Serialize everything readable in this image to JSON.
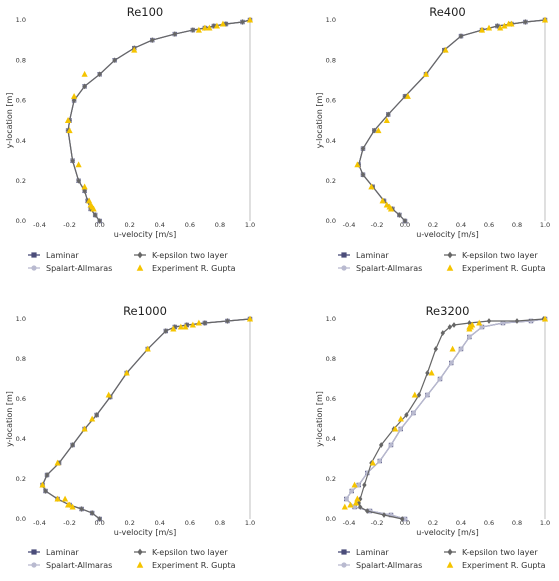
{
  "colors": {
    "laminar": "#4b4d7a",
    "spalart": "#b9bad0",
    "kepsilon": "#666666",
    "experiment": "#f5c400",
    "axis": "#b0b0b0",
    "text": "#333333"
  },
  "chart_data": [
    {
      "type": "line",
      "title": "Re100",
      "xlabel": "u-velocity [m/s]",
      "ylabel": "y-location [m]",
      "xlim": [
        -0.45,
        1.0
      ],
      "ylim": [
        0.0,
        1.0
      ],
      "xticks": [
        "-0.4",
        "-0.2",
        "0.0",
        "0.2",
        "0.4",
        "0.6",
        "0.8",
        "1.0"
      ],
      "yticks": [
        "0.0",
        "0.2",
        "0.4",
        "0.6",
        "0.8",
        "1.0"
      ],
      "legend": [
        "Laminar",
        "Spalart-Allmaras",
        "K-epsilon two layer",
        "Experiment R. Gupta"
      ],
      "series": [
        {
          "name": "Laminar",
          "key": "laminar",
          "marker": "square",
          "x": [
            0.0,
            -0.03,
            -0.06,
            -0.08,
            -0.1,
            -0.14,
            -0.18,
            -0.21,
            -0.2,
            -0.17,
            -0.1,
            0.0,
            0.1,
            0.23,
            0.35,
            0.5,
            0.62,
            0.7,
            0.76,
            0.84,
            0.95,
            1.0
          ],
          "y": [
            0.0,
            0.03,
            0.06,
            0.1,
            0.15,
            0.2,
            0.3,
            0.45,
            0.5,
            0.6,
            0.67,
            0.73,
            0.8,
            0.86,
            0.9,
            0.93,
            0.95,
            0.96,
            0.97,
            0.98,
            0.99,
            1.0
          ]
        },
        {
          "name": "Spalart-Allmaras",
          "key": "spalart",
          "marker": "circle",
          "x": [
            0.0,
            -0.03,
            -0.06,
            -0.08,
            -0.1,
            -0.14,
            -0.18,
            -0.21,
            -0.2,
            -0.17,
            -0.1,
            0.0,
            0.1,
            0.23,
            0.35,
            0.5,
            0.62,
            0.7,
            0.76,
            0.84,
            0.95,
            1.0
          ],
          "y": [
            0.0,
            0.03,
            0.06,
            0.1,
            0.15,
            0.2,
            0.3,
            0.45,
            0.5,
            0.6,
            0.67,
            0.73,
            0.8,
            0.86,
            0.9,
            0.93,
            0.95,
            0.96,
            0.97,
            0.98,
            0.99,
            1.0
          ]
        },
        {
          "name": "K-epsilon two layer",
          "key": "kepsilon",
          "marker": "diamond",
          "x": [
            0.0,
            -0.03,
            -0.06,
            -0.08,
            -0.1,
            -0.14,
            -0.18,
            -0.21,
            -0.2,
            -0.17,
            -0.1,
            0.0,
            0.1,
            0.23,
            0.35,
            0.5,
            0.62,
            0.7,
            0.76,
            0.84,
            0.95,
            1.0
          ],
          "y": [
            0.0,
            0.03,
            0.06,
            0.1,
            0.15,
            0.2,
            0.3,
            0.45,
            0.5,
            0.6,
            0.67,
            0.73,
            0.8,
            0.86,
            0.9,
            0.93,
            0.95,
            0.96,
            0.97,
            0.98,
            0.99,
            1.0
          ]
        },
        {
          "name": "Experiment R. Gupta",
          "key": "experiment",
          "marker": "triangle",
          "scatter": true,
          "x": [
            -0.04,
            -0.05,
            -0.06,
            -0.07,
            -0.1,
            -0.14,
            -0.2,
            -0.21,
            -0.21,
            -0.17,
            -0.1,
            0.23,
            0.66,
            0.7,
            0.73,
            0.78,
            0.82,
            1.0
          ],
          "y": [
            0.06,
            0.07,
            0.08,
            0.1,
            0.17,
            0.28,
            0.45,
            0.5,
            0.5,
            0.62,
            0.73,
            0.85,
            0.95,
            0.96,
            0.96,
            0.97,
            0.98,
            1.0
          ]
        }
      ]
    },
    {
      "type": "line",
      "title": "Re400",
      "xlabel": "u-velocity [m/s]",
      "ylabel": "y-location [m]",
      "xlim": [
        -0.45,
        1.0
      ],
      "ylim": [
        0.0,
        1.0
      ],
      "xticks": [
        "-0.4",
        "-0.2",
        "0.0",
        "0.2",
        "0.4",
        "0.6",
        "0.8",
        "1.0"
      ],
      "yticks": [
        "0.0",
        "0.2",
        "0.4",
        "0.6",
        "0.8",
        "1.0"
      ],
      "legend": [
        "Laminar",
        "Spalart-Allmaras",
        "K-epsilon two layer",
        "Experiment R. Gupta"
      ],
      "series": [
        {
          "name": "Laminar",
          "key": "laminar",
          "marker": "square",
          "x": [
            0.0,
            -0.04,
            -0.09,
            -0.15,
            -0.23,
            -0.3,
            -0.33,
            -0.3,
            -0.22,
            -0.12,
            0.0,
            0.15,
            0.28,
            0.4,
            0.55,
            0.66,
            0.76,
            0.86,
            1.0
          ],
          "y": [
            0.0,
            0.03,
            0.06,
            0.1,
            0.17,
            0.23,
            0.28,
            0.36,
            0.45,
            0.53,
            0.62,
            0.73,
            0.85,
            0.92,
            0.95,
            0.97,
            0.98,
            0.99,
            1.0
          ]
        },
        {
          "name": "Spalart-Allmaras",
          "key": "spalart",
          "marker": "circle",
          "x": [
            0.0,
            -0.04,
            -0.09,
            -0.15,
            -0.23,
            -0.3,
            -0.33,
            -0.3,
            -0.22,
            -0.12,
            0.0,
            0.15,
            0.28,
            0.4,
            0.55,
            0.66,
            0.76,
            0.86,
            1.0
          ],
          "y": [
            0.0,
            0.03,
            0.06,
            0.1,
            0.17,
            0.23,
            0.28,
            0.36,
            0.45,
            0.53,
            0.62,
            0.73,
            0.85,
            0.92,
            0.95,
            0.97,
            0.98,
            0.99,
            1.0
          ]
        },
        {
          "name": "K-epsilon two layer",
          "key": "kepsilon",
          "marker": "diamond",
          "x": [
            0.0,
            -0.04,
            -0.09,
            -0.15,
            -0.23,
            -0.3,
            -0.33,
            -0.3,
            -0.22,
            -0.12,
            0.0,
            0.15,
            0.28,
            0.4,
            0.55,
            0.66,
            0.76,
            0.86,
            1.0
          ],
          "y": [
            0.0,
            0.03,
            0.06,
            0.1,
            0.17,
            0.23,
            0.28,
            0.36,
            0.45,
            0.53,
            0.62,
            0.73,
            0.85,
            0.92,
            0.95,
            0.97,
            0.98,
            0.99,
            1.0
          ]
        },
        {
          "name": "Experiment R. Gupta",
          "key": "experiment",
          "marker": "triangle",
          "scatter": true,
          "x": [
            -0.1,
            -0.11,
            -0.13,
            -0.16,
            -0.24,
            -0.34,
            -0.19,
            -0.13,
            0.02,
            0.15,
            0.29,
            0.55,
            0.6,
            0.68,
            0.71,
            0.74,
            0.76,
            1.0
          ],
          "y": [
            0.06,
            0.07,
            0.08,
            0.1,
            0.17,
            0.28,
            0.45,
            0.5,
            0.62,
            0.73,
            0.85,
            0.95,
            0.96,
            0.96,
            0.97,
            0.98,
            0.98,
            1.0
          ]
        }
      ]
    },
    {
      "type": "line",
      "title": "Re1000",
      "xlabel": "u-velocity [m/s]",
      "ylabel": "y-location [m]",
      "xlim": [
        -0.45,
        1.0
      ],
      "ylim": [
        0.0,
        1.0
      ],
      "xticks": [
        "-0.4",
        "-0.2",
        "0.0",
        "0.2",
        "0.4",
        "0.6",
        "0.8",
        "1.0"
      ],
      "yticks": [
        "0.0",
        "0.2",
        "0.4",
        "0.6",
        "0.8",
        "1.0"
      ],
      "legend": [
        "Laminar",
        "Spalart-Allmaras",
        "K-epsilon two layer",
        "Experiment R. Gupta"
      ],
      "series": [
        {
          "name": "Laminar",
          "key": "laminar",
          "marker": "square",
          "x": [
            0.0,
            -0.05,
            -0.12,
            -0.2,
            -0.28,
            -0.36,
            -0.38,
            -0.35,
            -0.27,
            -0.18,
            -0.1,
            -0.02,
            0.07,
            0.18,
            0.32,
            0.44,
            0.5,
            0.58,
            0.7,
            0.85,
            1.0
          ],
          "y": [
            0.0,
            0.03,
            0.05,
            0.07,
            0.1,
            0.14,
            0.17,
            0.22,
            0.28,
            0.37,
            0.45,
            0.52,
            0.61,
            0.73,
            0.85,
            0.94,
            0.96,
            0.97,
            0.98,
            0.99,
            1.0
          ]
        },
        {
          "name": "Spalart-Allmaras",
          "key": "spalart",
          "marker": "circle",
          "x": [
            0.0,
            -0.05,
            -0.12,
            -0.2,
            -0.28,
            -0.36,
            -0.38,
            -0.35,
            -0.27,
            -0.18,
            -0.1,
            -0.02,
            0.07,
            0.18,
            0.32,
            0.44,
            0.5,
            0.58,
            0.7,
            0.85,
            1.0
          ],
          "y": [
            0.0,
            0.03,
            0.05,
            0.07,
            0.1,
            0.14,
            0.17,
            0.22,
            0.28,
            0.37,
            0.45,
            0.52,
            0.61,
            0.73,
            0.85,
            0.94,
            0.96,
            0.97,
            0.98,
            0.99,
            1.0
          ]
        },
        {
          "name": "K-epsilon two layer",
          "key": "kepsilon",
          "marker": "diamond",
          "x": [
            0.0,
            -0.05,
            -0.12,
            -0.2,
            -0.28,
            -0.36,
            -0.38,
            -0.35,
            -0.27,
            -0.18,
            -0.1,
            -0.02,
            0.07,
            0.18,
            0.32,
            0.44,
            0.5,
            0.58,
            0.7,
            0.85,
            1.0
          ],
          "y": [
            0.0,
            0.03,
            0.05,
            0.07,
            0.1,
            0.14,
            0.17,
            0.22,
            0.28,
            0.37,
            0.45,
            0.52,
            0.61,
            0.73,
            0.85,
            0.94,
            0.96,
            0.97,
            0.98,
            0.99,
            1.0
          ]
        },
        {
          "name": "Experiment R. Gupta",
          "key": "experiment",
          "marker": "triangle",
          "scatter": true,
          "x": [
            -0.18,
            -0.2,
            -0.21,
            -0.23,
            -0.28,
            -0.38,
            -0.28,
            -0.1,
            -0.05,
            0.06,
            0.18,
            0.32,
            0.49,
            0.54,
            0.57,
            0.62,
            0.66,
            1.0
          ],
          "y": [
            0.06,
            0.07,
            0.07,
            0.1,
            0.1,
            0.17,
            0.28,
            0.45,
            0.5,
            0.62,
            0.73,
            0.85,
            0.95,
            0.96,
            0.96,
            0.97,
            0.98,
            1.0
          ]
        }
      ]
    },
    {
      "type": "line",
      "title": "Re3200",
      "xlabel": "u-velocity [m/s]",
      "ylabel": "y-location [m]",
      "xlim": [
        -0.45,
        1.0
      ],
      "ylim": [
        0.0,
        1.0
      ],
      "xticks": [
        "-0.4",
        "-0.2",
        "0.0",
        "0.2",
        "0.4",
        "0.6",
        "0.8",
        "1.0"
      ],
      "yticks": [
        "0.0",
        "0.2",
        "0.4",
        "0.6",
        "0.8",
        "1.0"
      ],
      "legend": [
        "Laminar",
        "Spalart-Allmaras",
        "K-epsilon two layer",
        "Experiment R. Gupta"
      ],
      "series": [
        {
          "name": "Laminar",
          "key": "laminar",
          "marker": "square",
          "x": [
            0.0,
            -0.1,
            -0.25,
            -0.36,
            -0.42,
            -0.38,
            -0.33,
            -0.27,
            -0.18,
            -0.1,
            -0.03,
            0.06,
            0.16,
            0.25,
            0.33,
            0.4,
            0.46,
            0.55,
            0.7,
            0.9,
            1.0
          ],
          "y": [
            0.0,
            0.02,
            0.04,
            0.06,
            0.1,
            0.14,
            0.17,
            0.23,
            0.29,
            0.37,
            0.45,
            0.53,
            0.62,
            0.7,
            0.78,
            0.85,
            0.91,
            0.96,
            0.98,
            0.99,
            1.0
          ]
        },
        {
          "name": "Spalart-Allmaras",
          "key": "spalart",
          "marker": "circle",
          "x": [
            0.0,
            -0.1,
            -0.25,
            -0.36,
            -0.42,
            -0.38,
            -0.33,
            -0.27,
            -0.18,
            -0.1,
            -0.03,
            0.06,
            0.16,
            0.25,
            0.33,
            0.4,
            0.46,
            0.55,
            0.7,
            0.9,
            1.0
          ],
          "y": [
            0.0,
            0.02,
            0.04,
            0.06,
            0.1,
            0.14,
            0.17,
            0.23,
            0.29,
            0.37,
            0.45,
            0.53,
            0.62,
            0.7,
            0.78,
            0.85,
            0.91,
            0.96,
            0.98,
            0.99,
            1.0
          ]
        },
        {
          "name": "K-epsilon two layer",
          "key": "kepsilon",
          "marker": "diamond",
          "x": [
            -0.02,
            -0.15,
            -0.27,
            -0.32,
            -0.33,
            -0.32,
            -0.29,
            -0.24,
            -0.17,
            -0.08,
            0.01,
            0.1,
            0.16,
            0.22,
            0.27,
            0.32,
            0.35,
            0.46,
            0.6,
            0.8,
            0.99
          ],
          "y": [
            0.0,
            0.02,
            0.04,
            0.06,
            0.08,
            0.1,
            0.17,
            0.28,
            0.37,
            0.45,
            0.52,
            0.62,
            0.73,
            0.85,
            0.93,
            0.96,
            0.97,
            0.98,
            0.99,
            0.99,
            1.0
          ]
        },
        {
          "name": "Experiment R. Gupta",
          "key": "experiment",
          "marker": "triangle",
          "scatter": true,
          "x": [
            -0.43,
            -0.39,
            -0.35,
            -0.34,
            -0.34,
            -0.36,
            -0.23,
            -0.07,
            -0.03,
            0.07,
            0.19,
            0.34,
            0.46,
            0.46,
            0.47,
            0.48,
            0.53,
            1.0
          ],
          "y": [
            0.06,
            0.07,
            0.08,
            0.1,
            0.1,
            0.17,
            0.28,
            0.45,
            0.5,
            0.62,
            0.73,
            0.85,
            0.95,
            0.96,
            0.96,
            0.97,
            0.98,
            1.0
          ]
        }
      ]
    }
  ]
}
